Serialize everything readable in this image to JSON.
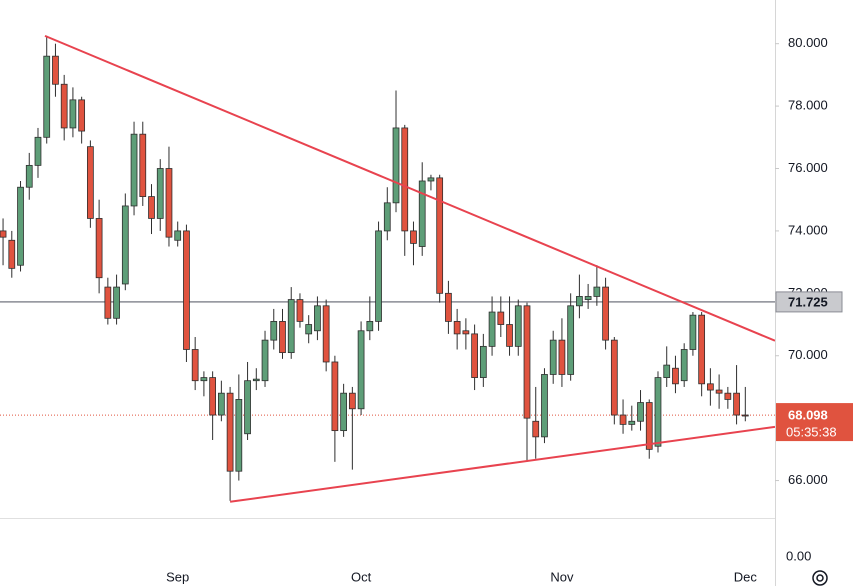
{
  "chart_data": {
    "type": "candlestick",
    "categories": [
      null,
      null,
      null,
      null,
      null,
      null,
      null,
      null,
      null,
      null,
      null,
      null,
      null,
      null,
      null,
      null,
      null,
      null,
      null,
      null,
      "Sep",
      null,
      null,
      null,
      null,
      null,
      null,
      null,
      null,
      null,
      null,
      null,
      null,
      null,
      null,
      null,
      null,
      null,
      null,
      null,
      null,
      "Oct",
      null,
      null,
      null,
      null,
      null,
      null,
      null,
      null,
      null,
      null,
      null,
      null,
      null,
      null,
      null,
      null,
      null,
      null,
      null,
      null,
      null,
      null,
      "Nov",
      null,
      null,
      null,
      null,
      null,
      null,
      null,
      null,
      null,
      null,
      null,
      null,
      null,
      null,
      null,
      null,
      null,
      null,
      null,
      null,
      "Dec"
    ],
    "open": [
      74.0,
      73.7,
      72.9,
      75.4,
      76.1,
      77.0,
      79.6,
      78.7,
      77.3,
      78.2,
      76.7,
      74.4,
      72.2,
      71.2,
      72.3,
      74.8,
      77.1,
      75.1,
      74.4,
      76.0,
      73.7,
      74.0,
      70.2,
      69.2,
      69.3,
      68.1,
      68.8,
      66.3,
      67.5,
      69.2,
      69.2,
      70.5,
      71.1,
      70.1,
      71.8,
      70.7,
      70.8,
      71.6,
      69.8,
      67.6,
      68.8,
      68.3,
      70.8,
      71.1,
      74.0,
      74.9,
      77.3,
      74.0,
      73.5,
      75.6,
      75.7,
      72.0,
      71.1,
      70.8,
      70.7,
      69.3,
      70.3,
      71.4,
      71.0,
      70.3,
      71.6,
      67.9,
      67.4,
      69.4,
      70.5,
      69.4,
      71.6,
      71.8,
      71.9,
      72.2,
      70.5,
      68.1,
      67.8,
      67.9,
      68.5,
      67.1,
      69.3,
      69.6,
      69.2,
      70.2,
      71.3,
      69.1,
      68.9,
      68.8,
      68.8,
      68.1
    ],
    "high": [
      74.4,
      74.0,
      75.6,
      76.5,
      77.3,
      80.25,
      80.0,
      79.0,
      78.6,
      78.3,
      76.9,
      75.0,
      72.5,
      72.6,
      75.2,
      77.5,
      77.5,
      75.5,
      76.3,
      76.7,
      74.3,
      74.2,
      70.6,
      69.5,
      69.5,
      69.2,
      69.0,
      69.4,
      69.8,
      69.6,
      70.8,
      71.5,
      71.5,
      72.2,
      72.0,
      71.3,
      71.9,
      71.8,
      70.0,
      69.1,
      69.0,
      71.1,
      71.9,
      74.3,
      75.4,
      78.5,
      77.4,
      74.3,
      76.2,
      75.8,
      75.8,
      72.4,
      71.5,
      71.2,
      71.0,
      70.7,
      71.9,
      71.9,
      71.9,
      71.8,
      71.7,
      69.0,
      69.6,
      70.8,
      71.2,
      72.0,
      72.6,
      72.3,
      72.9,
      72.5,
      70.6,
      68.6,
      68.4,
      68.9,
      68.6,
      69.5,
      70.3,
      70.0,
      70.4,
      71.4,
      71.4,
      69.6,
      69.4,
      69.0,
      69.7,
      69.0
    ],
    "low": [
      72.9,
      72.5,
      72.7,
      75.0,
      75.7,
      76.8,
      78.3,
      76.9,
      77.0,
      76.8,
      74.1,
      72.0,
      71.0,
      71.0,
      72.1,
      74.5,
      74.8,
      73.9,
      74.0,
      73.5,
      73.5,
      69.8,
      68.9,
      68.7,
      67.3,
      67.9,
      65.35,
      66.0,
      67.3,
      68.9,
      69.0,
      70.2,
      69.9,
      69.9,
      70.9,
      70.4,
      70.5,
      69.5,
      66.6,
      67.4,
      66.35,
      68.1,
      70.5,
      70.8,
      73.7,
      74.6,
      73.2,
      72.9,
      73.2,
      75.3,
      71.7,
      70.7,
      70.2,
      70.2,
      68.9,
      69.0,
      70.0,
      70.6,
      70.0,
      70.0,
      66.6,
      66.7,
      67.2,
      69.1,
      69.0,
      69.2,
      71.2,
      71.5,
      71.6,
      70.2,
      67.8,
      67.5,
      67.6,
      67.6,
      66.7,
      66.9,
      69.0,
      68.8,
      69.0,
      70.0,
      68.7,
      68.4,
      68.3,
      68.3,
      67.8,
      67.9
    ],
    "close": [
      73.8,
      72.8,
      75.4,
      76.1,
      77.0,
      79.6,
      78.7,
      77.3,
      78.2,
      77.2,
      74.4,
      72.5,
      71.2,
      72.2,
      74.8,
      77.1,
      75.1,
      74.4,
      76.0,
      73.8,
      74.0,
      70.2,
      69.2,
      69.3,
      68.1,
      68.8,
      66.3,
      68.6,
      69.2,
      69.25,
      70.5,
      71.1,
      70.1,
      71.8,
      71.1,
      71.0,
      71.6,
      69.8,
      67.6,
      68.8,
      68.3,
      70.8,
      71.1,
      74.0,
      74.9,
      77.3,
      74.0,
      73.6,
      75.6,
      75.7,
      72.0,
      71.1,
      70.7,
      70.7,
      69.3,
      70.3,
      71.4,
      71.0,
      70.3,
      71.6,
      68.0,
      67.4,
      69.4,
      70.5,
      69.4,
      71.6,
      71.9,
      71.9,
      72.2,
      70.5,
      68.1,
      67.8,
      67.9,
      68.5,
      67.0,
      69.3,
      69.7,
      69.1,
      70.2,
      71.3,
      69.1,
      68.9,
      68.8,
      68.6,
      68.1,
      68.098
    ],
    "up_color": "#5e9e78",
    "down_color": "#e0533f",
    "xlim": [
      -0.35,
      88.4
    ],
    "ylim": [
      64.8,
      81.4
    ],
    "yticks": [
      {
        "value": 66,
        "label": "66.000"
      },
      {
        "value": 70,
        "label": "70.000"
      },
      {
        "value": 72,
        "label": "72.000"
      },
      {
        "value": 74,
        "label": "74.000"
      },
      {
        "value": 76,
        "label": "76.000"
      },
      {
        "value": 78,
        "label": "78.000"
      },
      {
        "value": 80,
        "label": "80.000"
      }
    ],
    "trendlines": [
      {
        "x": [
          4.8,
          88.4
        ],
        "y": [
          80.25,
          70.48
        ],
        "color": "#e8434f"
      },
      {
        "x": [
          26,
          88.4
        ],
        "y": [
          65.32,
          67.72
        ],
        "color": "#e8434f"
      }
    ],
    "horizontal_line": {
      "value": 71.725,
      "color": "#8a8c94"
    },
    "last_price": {
      "value": 68.098,
      "countdown": "05:35:38",
      "color": "#e0533f"
    },
    "lower_pane_label": "0.00"
  }
}
